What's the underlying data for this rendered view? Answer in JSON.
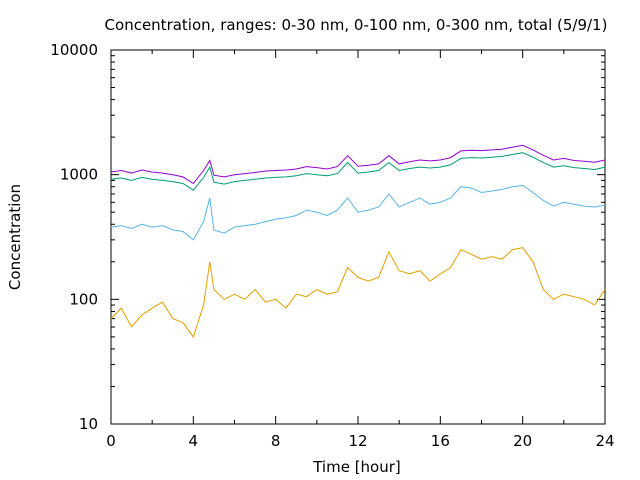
{
  "chart_data": {
    "type": "line",
    "title": "Concentration, ranges: 0-30 nm, 0-100 nm, 0-300 nm, total (5/9/1)",
    "xlabel": "Time [hour]",
    "ylabel": "Concentration",
    "xlim": [
      0,
      24
    ],
    "ylim": [
      10,
      10000
    ],
    "yscale": "log",
    "grid": false,
    "legend": "none",
    "x_ticks": [
      "0",
      "4",
      "8",
      "12",
      "16",
      "20",
      "24"
    ],
    "y_ticks": [
      "10",
      "100",
      "1000",
      "10000"
    ],
    "x": [
      0,
      0.5,
      1,
      1.5,
      2,
      2.5,
      3,
      3.5,
      4,
      4.5,
      4.8,
      5,
      5.5,
      6,
      6.5,
      7,
      7.5,
      8,
      8.5,
      9,
      9.5,
      10,
      10.5,
      11,
      11.5,
      12,
      12.5,
      13,
      13.5,
      14,
      14.5,
      15,
      15.5,
      16,
      16.5,
      17,
      17.5,
      18,
      18.5,
      19,
      19.5,
      20,
      20.5,
      21,
      21.5,
      22,
      22.5,
      23,
      23.5,
      24
    ],
    "series": [
      {
        "color": "#e69f00",
        "values": [
          70,
          85,
          60,
          75,
          85,
          95,
          70,
          65,
          50,
          90,
          200,
          120,
          100,
          110,
          100,
          120,
          95,
          100,
          85,
          110,
          105,
          120,
          110,
          115,
          180,
          150,
          140,
          150,
          240,
          170,
          160,
          170,
          140,
          160,
          180,
          250,
          230,
          210,
          220,
          210,
          250,
          260,
          200,
          120,
          100,
          110,
          105,
          100,
          90,
          120
        ]
      },
      {
        "color": "#56b4e9",
        "values": [
          380,
          390,
          370,
          400,
          380,
          390,
          360,
          350,
          300,
          420,
          650,
          360,
          340,
          380,
          390,
          400,
          420,
          440,
          450,
          470,
          520,
          500,
          470,
          520,
          650,
          500,
          520,
          550,
          700,
          550,
          600,
          650,
          580,
          600,
          650,
          800,
          780,
          720,
          740,
          760,
          800,
          820,
          720,
          620,
          560,
          600,
          580,
          560,
          550,
          570
        ]
      },
      {
        "color": "#009e73",
        "values": [
          920,
          940,
          900,
          950,
          920,
          900,
          880,
          850,
          750,
          950,
          1150,
          870,
          840,
          880,
          900,
          920,
          940,
          950,
          960,
          980,
          1020,
          1000,
          980,
          1020,
          1250,
          1030,
          1050,
          1080,
          1250,
          1080,
          1120,
          1150,
          1130,
          1150,
          1200,
          1350,
          1370,
          1360,
          1380,
          1400,
          1450,
          1500,
          1380,
          1250,
          1150,
          1180,
          1140,
          1120,
          1100,
          1150
        ]
      },
      {
        "color": "#9400d3",
        "values": [
          1050,
          1080,
          1030,
          1090,
          1050,
          1030,
          1000,
          960,
          850,
          1080,
          1300,
          990,
          960,
          1000,
          1020,
          1040,
          1070,
          1080,
          1090,
          1110,
          1160,
          1140,
          1110,
          1160,
          1420,
          1170,
          1190,
          1220,
          1420,
          1220,
          1270,
          1310,
          1290,
          1310,
          1370,
          1550,
          1570,
          1560,
          1580,
          1600,
          1660,
          1720,
          1580,
          1430,
          1310,
          1350,
          1300,
          1280,
          1260,
          1310
        ]
      }
    ]
  }
}
